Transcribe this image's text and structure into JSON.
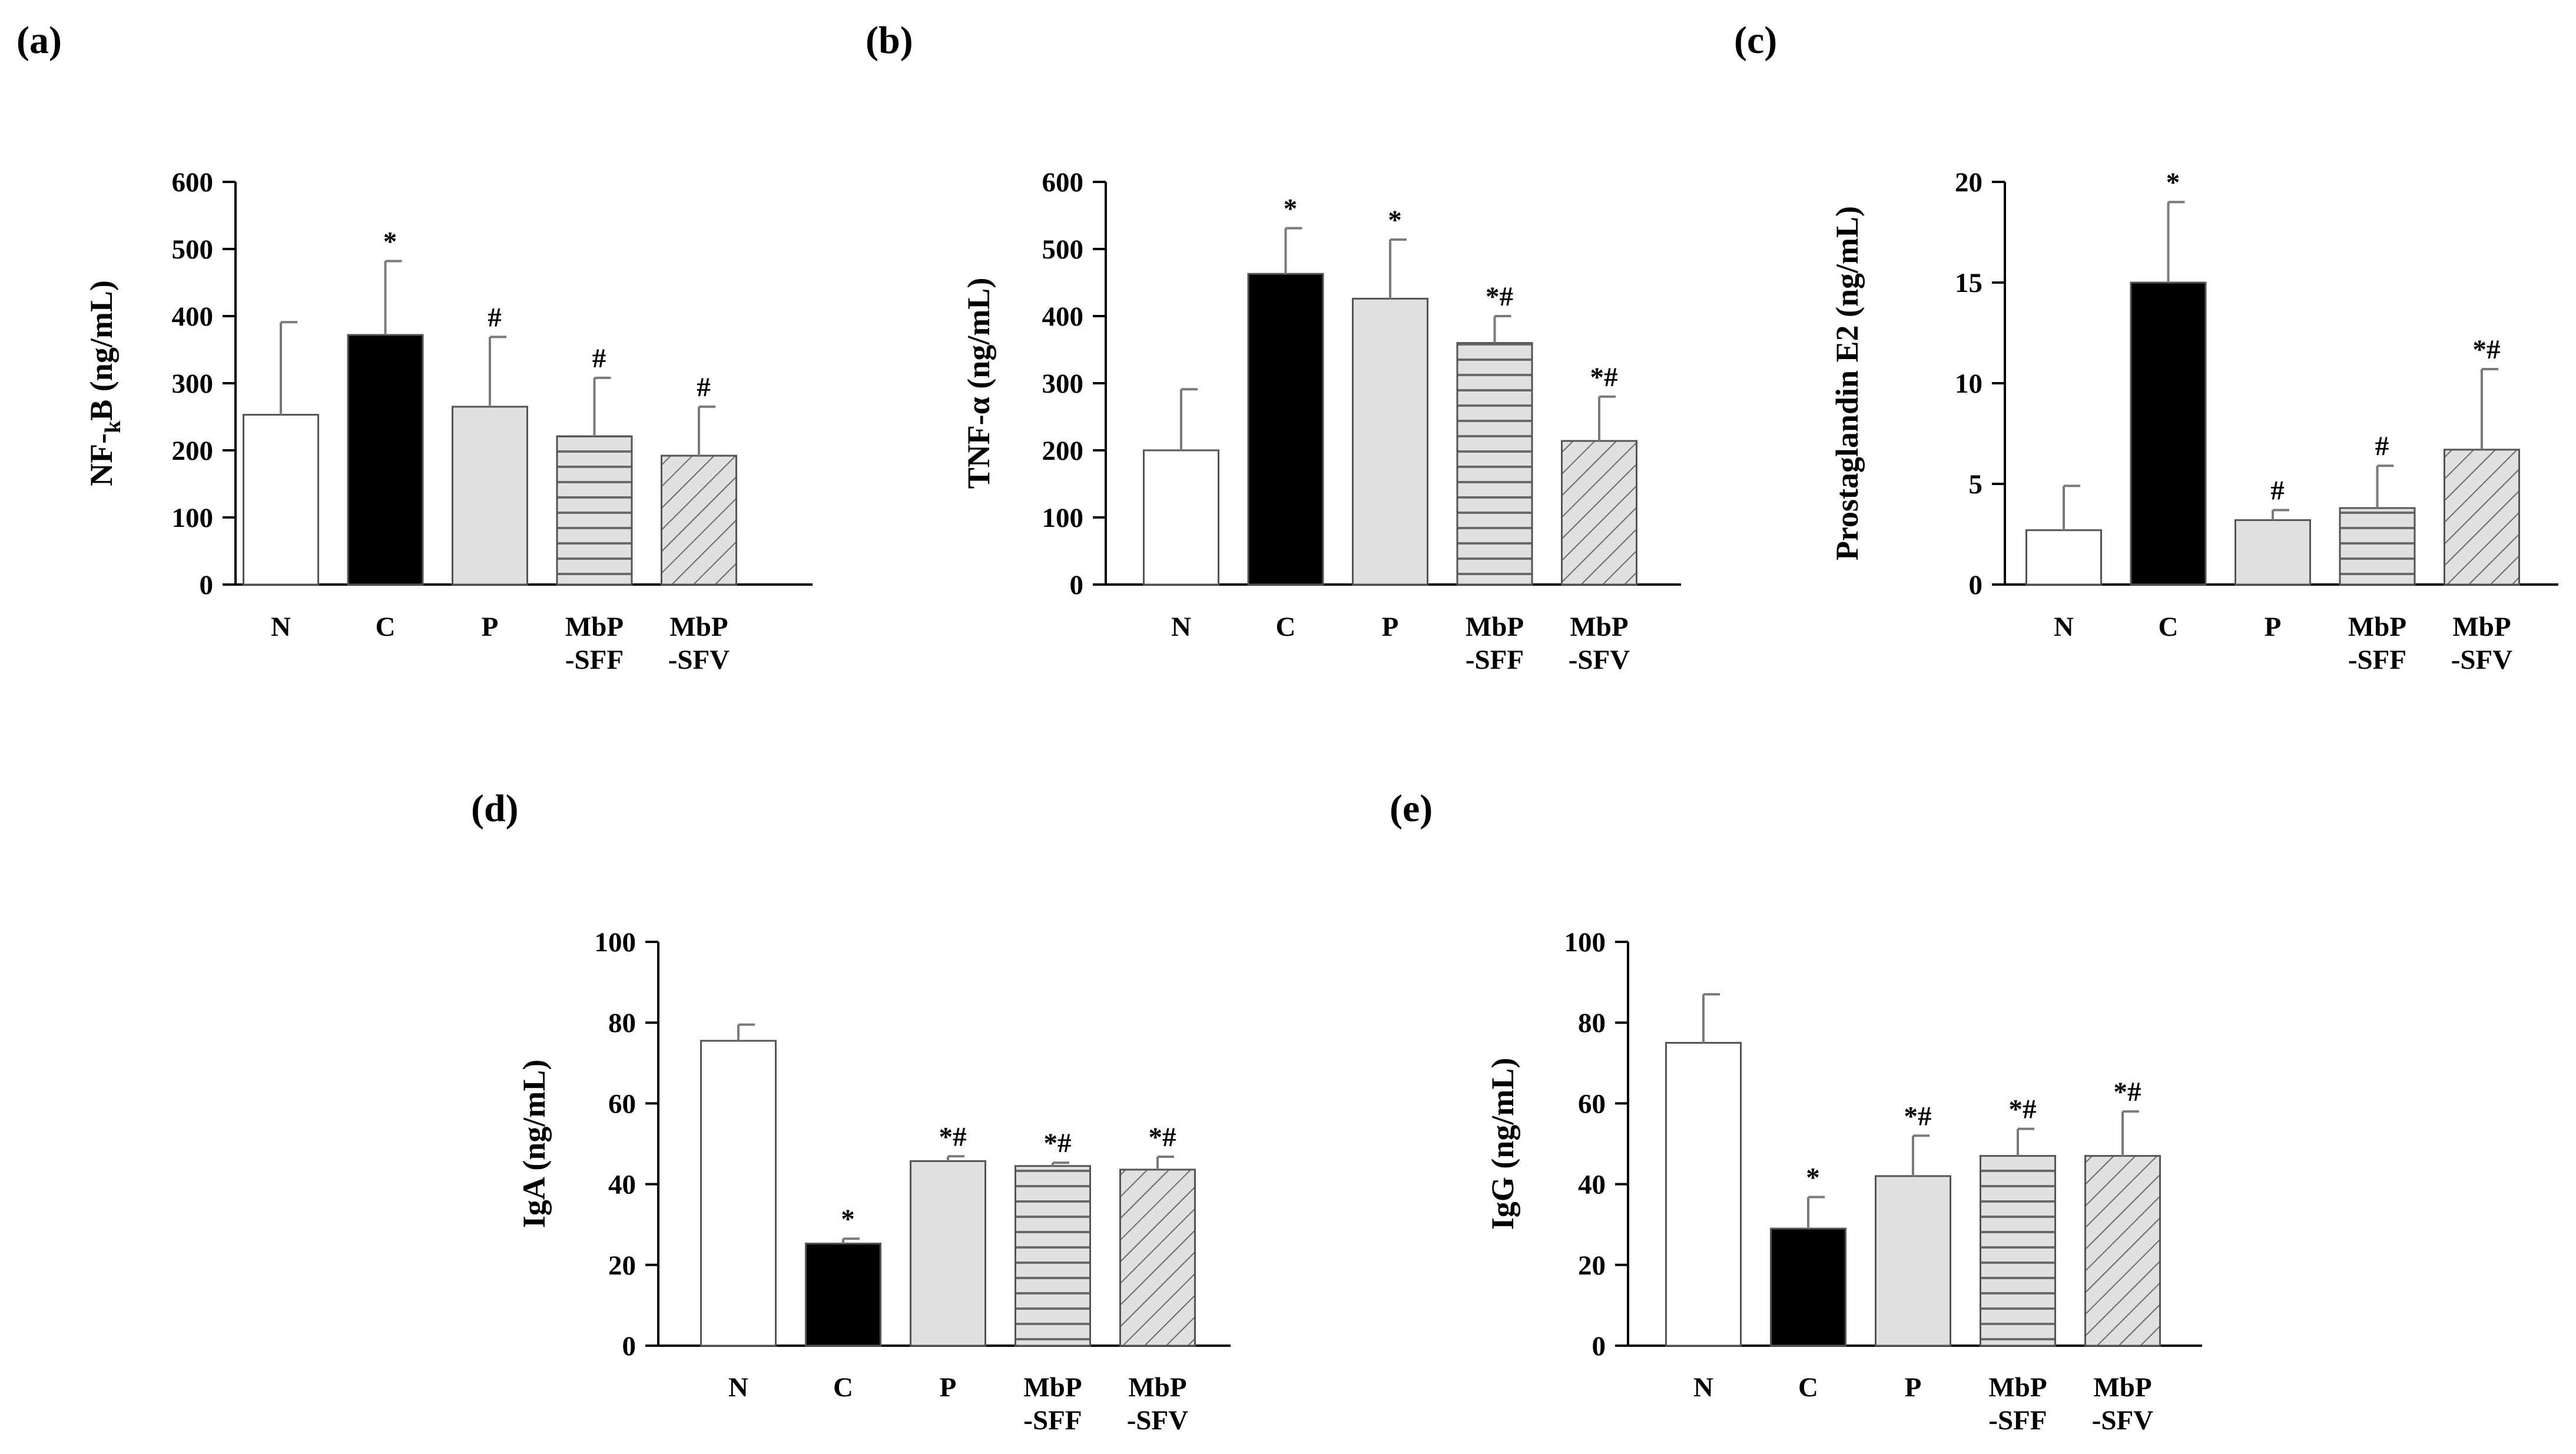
{
  "figure_title": "",
  "categories": [
    [
      "N"
    ],
    [
      "C"
    ],
    [
      "P"
    ],
    [
      "MbP",
      "-SFF"
    ],
    [
      "MbP",
      "-SFV"
    ]
  ],
  "bar_styles": [
    {
      "group": "N",
      "fill": "white",
      "color": "#ffffff"
    },
    {
      "group": "C",
      "fill": "black",
      "color": "#000000"
    },
    {
      "group": "P",
      "fill": "light-gray",
      "color": "#e0e0e0"
    },
    {
      "group": "MbP-SFF",
      "fill": "horizontal-lines",
      "color": "#e0e0e0"
    },
    {
      "group": "MbP-SFV",
      "fill": "diagonal-lines",
      "color": "#e0e0e0"
    }
  ],
  "chart_data": [
    {
      "panel_label": "(a)",
      "type": "bar",
      "ylabel_main": "NF-",
      "ylabel_sub": "k",
      "ylabel_rest": "B (ng/mL)",
      "ylim": [
        0,
        600
      ],
      "yticks": [
        0,
        100,
        200,
        300,
        400,
        500,
        600
      ],
      "values": [
        253,
        372,
        265,
        221,
        192
      ],
      "errors": [
        138,
        110,
        104,
        87,
        73
      ],
      "significance": [
        "",
        "*",
        "#",
        "#",
        "#"
      ]
    },
    {
      "panel_label": "(b)",
      "type": "bar",
      "ylabel_main": "TNF-α (ng/mL)",
      "ylim": [
        0,
        600
      ],
      "yticks": [
        0,
        100,
        200,
        300,
        400,
        500,
        600
      ],
      "values": [
        200,
        463,
        426,
        360,
        214
      ],
      "errors": [
        91,
        68,
        88,
        40,
        66
      ],
      "significance": [
        "",
        "*",
        "*",
        "*#",
        "*#"
      ]
    },
    {
      "panel_label": "(c)",
      "type": "bar",
      "ylabel_main": "Prostaglandin E2 (ng/mL)",
      "ylim": [
        0,
        20
      ],
      "yticks": [
        0,
        5,
        10,
        15,
        20
      ],
      "values": [
        2.7,
        15.0,
        3.2,
        3.8,
        6.7
      ],
      "errors": [
        2.2,
        4.0,
        0.5,
        2.1,
        4.0
      ],
      "significance": [
        "",
        "*",
        "#",
        "#",
        "*#"
      ]
    },
    {
      "panel_label": "(d)",
      "type": "bar",
      "ylabel_main": "IgA (ng/mL)",
      "ylim": [
        0,
        100
      ],
      "yticks": [
        0,
        20,
        40,
        60,
        80,
        100
      ],
      "values": [
        75.5,
        25.3,
        45.7,
        44.5,
        43.6
      ],
      "errors": [
        4.0,
        1.2,
        1.2,
        0.8,
        3.2
      ],
      "significance": [
        "",
        "*",
        "*#",
        "*#",
        "*#"
      ]
    },
    {
      "panel_label": "(e)",
      "type": "bar",
      "ylabel_main": "IgG (ng/mL)",
      "ylim": [
        0,
        100
      ],
      "yticks": [
        0,
        20,
        40,
        60,
        80,
        100
      ],
      "values": [
        75.0,
        29.0,
        42.0,
        47.0,
        47.0
      ],
      "errors": [
        12.0,
        7.8,
        10.0,
        6.7,
        11.0
      ],
      "significance": [
        "",
        "*",
        "*#",
        "*#",
        "*#"
      ]
    }
  ]
}
